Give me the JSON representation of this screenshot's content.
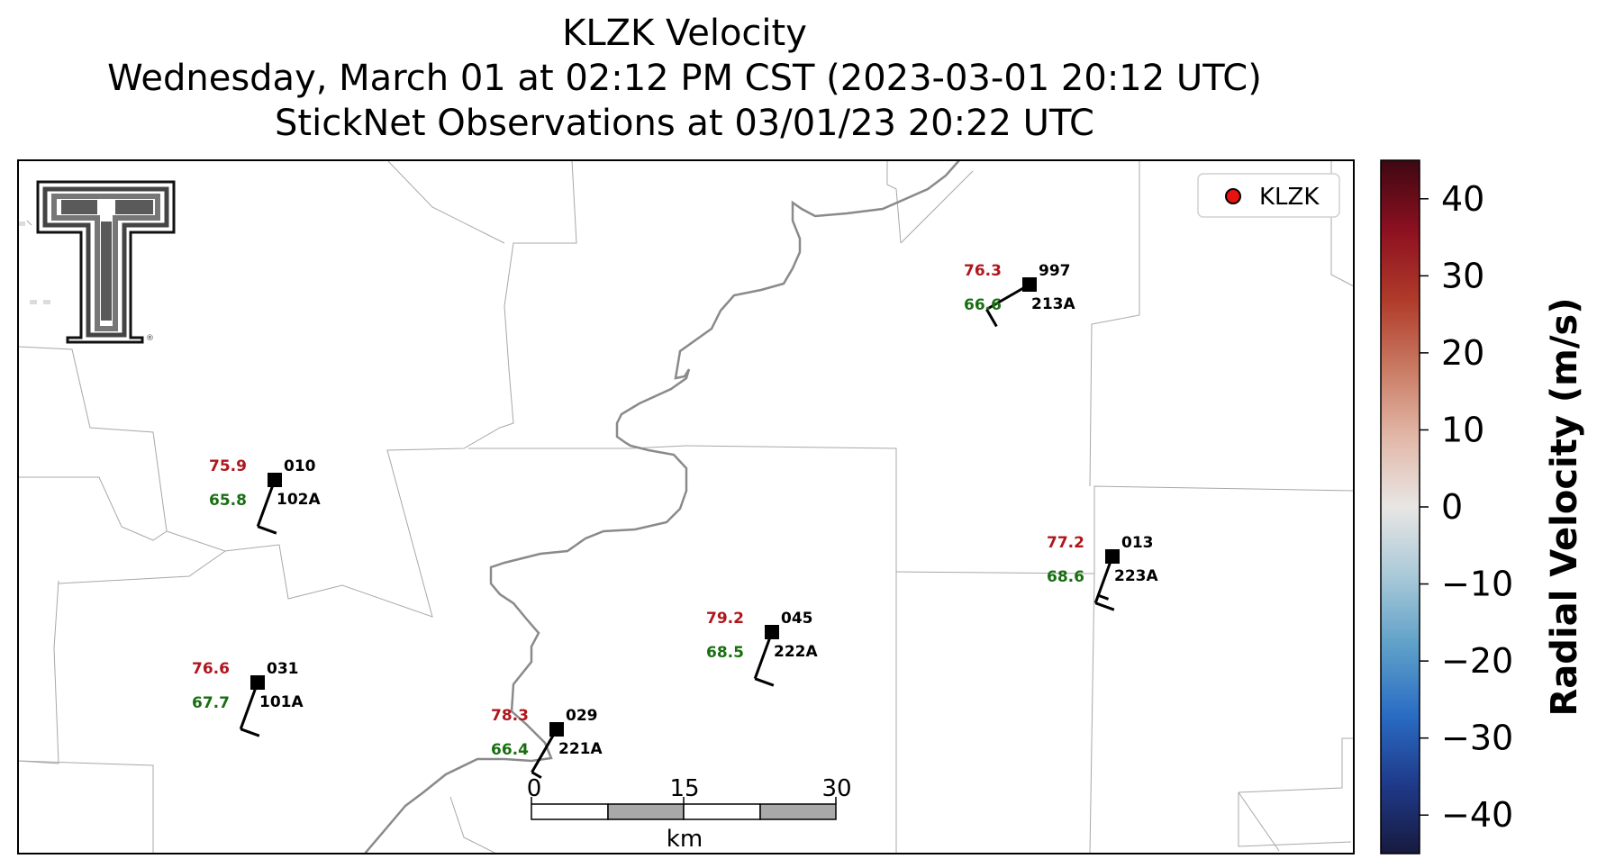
{
  "title": {
    "line1": "KLZK Velocity",
    "line2": "Wednesday, March 01 at 02:12 PM CST (2023-03-01 20:12 UTC)",
    "line3": "StickNet Observations at 03/01/23 20:22 UTC"
  },
  "legend": {
    "label": "KLZK",
    "marker_color": "#e8120f"
  },
  "colors": {
    "temperature": "#b0161c",
    "dewpoint": "#1a6e12",
    "station_id": "#000000"
  },
  "stations": [
    {
      "temp": "75.9",
      "dew": "65.8",
      "id": "010",
      "probe": "102A",
      "wind_dir_deg": 200,
      "wind_kts": 10
    },
    {
      "temp": "76.3",
      "dew": "66.6",
      "id": "997",
      "probe": "213A",
      "wind_dir_deg": 240,
      "wind_kts": 10
    },
    {
      "temp": "77.2",
      "dew": "68.6",
      "id": "013",
      "probe": "223A",
      "wind_dir_deg": 200,
      "wind_kts": 15
    },
    {
      "temp": "79.2",
      "dew": "68.5",
      "id": "045",
      "probe": "222A",
      "wind_dir_deg": 200,
      "wind_kts": 10
    },
    {
      "temp": "76.6",
      "dew": "67.7",
      "id": "031",
      "probe": "101A",
      "wind_dir_deg": 200,
      "wind_kts": 10
    },
    {
      "temp": "78.3",
      "dew": "66.4",
      "id": "029",
      "probe": "221A",
      "wind_dir_deg": 210,
      "wind_kts": 5
    }
  ],
  "scale_bar": {
    "ticks": [
      "0",
      "15",
      "30"
    ],
    "unit": "km"
  },
  "colorbar": {
    "label": "Radial Velocity (m/s)",
    "min": -45,
    "max": 45,
    "ticks": [
      "40",
      "30",
      "20",
      "10",
      "0",
      "−10",
      "−20",
      "−30",
      "−40"
    ],
    "tick_values": [
      40,
      30,
      20,
      10,
      0,
      -10,
      -20,
      -30,
      -40
    ],
    "stops": [
      "#171a3e",
      "#1f3a8a",
      "#2a6cc4",
      "#5ea0c8",
      "#a9c9d8",
      "#e8e6e4",
      "#e2b8a8",
      "#c97a62",
      "#b03a2a",
      "#8c1020",
      "#3e0812"
    ]
  },
  "logo": {
    "name": "texas-tech-double-t-logo"
  }
}
